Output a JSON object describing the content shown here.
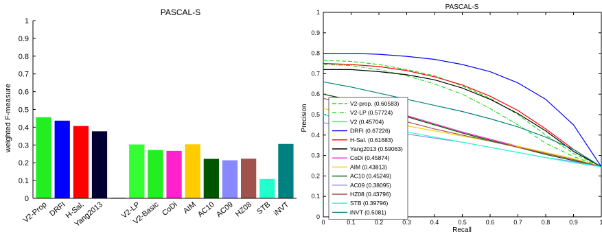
{
  "chart_data": [
    {
      "type": "bar",
      "title": "PASCAL-S",
      "ylabel": "weighted F-measure",
      "xlabel": "",
      "ylim": [
        0,
        1
      ],
      "yticks": [
        "0",
        "0.1",
        "0.2",
        "0.3",
        "0.4",
        "0.5",
        "0.6",
        "0.7",
        "0.8",
        "0.9",
        "1"
      ],
      "grid": false,
      "bars": [
        {
          "label": "V2-Prop",
          "value": 0.456,
          "color": "#22ee22"
        },
        {
          "label": "DRFI",
          "value": 0.437,
          "color": "#0000ff"
        },
        {
          "label": "H-Sal.",
          "value": 0.407,
          "color": "#ff0000"
        },
        {
          "label": "Yang2013",
          "value": 0.377,
          "color": "#000033"
        },
        {
          "label": "",
          "value": 0.003,
          "color": "#000000"
        },
        {
          "label": "V2-LP",
          "value": 0.303,
          "color": "#33ff33"
        },
        {
          "label": "V2-Basic",
          "value": 0.272,
          "color": "#22ee22"
        },
        {
          "label": "CoDi",
          "value": 0.267,
          "color": "#ff22cc"
        },
        {
          "label": "AIM",
          "value": 0.304,
          "color": "#ffcc00"
        },
        {
          "label": "AC10",
          "value": 0.222,
          "color": "#005500"
        },
        {
          "label": "AC09",
          "value": 0.214,
          "color": "#8888ff"
        },
        {
          "label": "HZ08",
          "value": 0.223,
          "color": "#a0524d"
        },
        {
          "label": "STB",
          "value": 0.109,
          "color": "#22ffcc"
        },
        {
          "label": "iNVT",
          "value": 0.306,
          "color": "#008080"
        }
      ]
    },
    {
      "type": "line",
      "title": "PASCAL-S",
      "xlabel": "Recall",
      "ylabel": "Precision",
      "xlim": [
        0,
        1
      ],
      "ylim": [
        0,
        1
      ],
      "xticks": [
        "0",
        "0.1",
        "0.2",
        "0.3",
        "0.4",
        "0.5",
        "0.6",
        "0.7",
        "0.8",
        "0.9",
        "1"
      ],
      "yticks": [
        "0",
        "0.1",
        "0.2",
        "0.3",
        "0.4",
        "0.5",
        "0.6",
        "0.7",
        "0.8",
        "0.9",
        "1"
      ],
      "grid": false,
      "legend_position": "lower-left",
      "series": [
        {
          "name": "V2-prop. (0.60583)",
          "color": "#22dd22",
          "dash": "6,3",
          "x": [
            0,
            0.1,
            0.2,
            0.3,
            0.4,
            0.5,
            0.6,
            0.7,
            0.8,
            0.9,
            1
          ],
          "y": [
            0.765,
            0.76,
            0.745,
            0.72,
            0.69,
            0.64,
            0.58,
            0.5,
            0.4,
            0.31,
            0.245
          ]
        },
        {
          "name": "V2-LP (0.57724)",
          "color": "#22dd22",
          "dash": "6,2,1,2",
          "x": [
            0,
            0.1,
            0.2,
            0.3,
            0.4,
            0.5,
            0.6,
            0.7,
            0.8,
            0.9,
            1
          ],
          "y": [
            0.745,
            0.74,
            0.72,
            0.69,
            0.65,
            0.6,
            0.53,
            0.45,
            0.36,
            0.295,
            0.245
          ]
        },
        {
          "name": "V2 (0.45704)",
          "color": "#33ee33",
          "dash": "",
          "x": [
            0,
            0.1,
            0.2,
            0.3,
            0.4,
            0.5,
            0.6,
            0.7,
            0.8,
            0.9,
            1
          ],
          "y": [
            0.6,
            0.57,
            0.53,
            0.49,
            0.45,
            0.41,
            0.37,
            0.34,
            0.31,
            0.28,
            0.245
          ]
        },
        {
          "name": "DRFI (0.67226)",
          "color": "#0000ff",
          "dash": "",
          "x": [
            0,
            0.1,
            0.2,
            0.3,
            0.4,
            0.5,
            0.6,
            0.7,
            0.8,
            0.9,
            1
          ],
          "y": [
            0.8,
            0.8,
            0.795,
            0.785,
            0.77,
            0.745,
            0.71,
            0.655,
            0.575,
            0.45,
            0.245
          ]
        },
        {
          "name": "H-Sal. (0.61683)",
          "color": "#ff0000",
          "dash": "",
          "x": [
            0,
            0.1,
            0.2,
            0.3,
            0.4,
            0.5,
            0.6,
            0.7,
            0.8,
            0.9,
            1
          ],
          "y": [
            0.75,
            0.745,
            0.735,
            0.715,
            0.685,
            0.645,
            0.59,
            0.52,
            0.43,
            0.33,
            0.245
          ]
        },
        {
          "name": "Yang2013 (0.59063)",
          "color": "#000000",
          "dash": "",
          "x": [
            0,
            0.1,
            0.2,
            0.3,
            0.4,
            0.5,
            0.6,
            0.7,
            0.8,
            0.9,
            1
          ],
          "y": [
            0.72,
            0.72,
            0.71,
            0.695,
            0.67,
            0.63,
            0.575,
            0.505,
            0.42,
            0.32,
            0.245
          ]
        },
        {
          "name": "CoDi (0.45874)",
          "color": "#ff22cc",
          "dash": "",
          "x": [
            0,
            0.1,
            0.2,
            0.3,
            0.4,
            0.5,
            0.6,
            0.7,
            0.8,
            0.9,
            1
          ],
          "y": [
            0.6,
            0.57,
            0.535,
            0.495,
            0.455,
            0.415,
            0.38,
            0.345,
            0.31,
            0.28,
            0.245
          ]
        },
        {
          "name": "AIM (0.43813)",
          "color": "#ffcc00",
          "dash": "",
          "x": [
            0,
            0.1,
            0.2,
            0.3,
            0.4,
            0.5,
            0.6,
            0.7,
            0.8,
            0.9,
            1
          ],
          "y": [
            0.53,
            0.5,
            0.47,
            0.445,
            0.42,
            0.395,
            0.37,
            0.345,
            0.315,
            0.285,
            0.245
          ]
        },
        {
          "name": "AC10 (0.45249)",
          "color": "#005500",
          "dash": "",
          "x": [
            0,
            0.1,
            0.2,
            0.3,
            0.4,
            0.5,
            0.6,
            0.7,
            0.8,
            0.9,
            1
          ],
          "y": [
            0.6,
            0.57,
            0.53,
            0.49,
            0.45,
            0.41,
            0.375,
            0.34,
            0.305,
            0.275,
            0.245
          ]
        },
        {
          "name": "AC09 (0.38095)",
          "color": "#8888ff",
          "dash": "",
          "x": [
            0,
            0.1,
            0.2,
            0.3,
            0.4,
            0.5,
            0.6,
            0.7,
            0.8,
            0.9,
            1
          ],
          "y": [
            0.46,
            0.44,
            0.425,
            0.405,
            0.385,
            0.365,
            0.34,
            0.315,
            0.29,
            0.27,
            0.245
          ]
        },
        {
          "name": "HZ08 (0.43796)",
          "color": "#a0524d",
          "dash": "",
          "x": [
            0,
            0.1,
            0.2,
            0.3,
            0.4,
            0.5,
            0.6,
            0.7,
            0.8,
            0.9,
            1
          ],
          "y": [
            0.58,
            0.54,
            0.5,
            0.465,
            0.43,
            0.4,
            0.37,
            0.34,
            0.31,
            0.28,
            0.245
          ]
        },
        {
          "name": "STB (0.39796)",
          "color": "#22ffcc",
          "dash": "",
          "x": [
            0,
            0.1,
            0.2,
            0.3,
            0.4,
            0.5,
            0.6,
            0.7,
            0.8,
            0.9,
            1
          ],
          "y": [
            0.5,
            0.465,
            0.44,
            0.415,
            0.39,
            0.365,
            0.34,
            0.315,
            0.29,
            0.265,
            0.245
          ]
        },
        {
          "name": "iNVT (0.5081)",
          "color": "#008080",
          "dash": "",
          "x": [
            0,
            0.1,
            0.2,
            0.3,
            0.4,
            0.5,
            0.6,
            0.7,
            0.8,
            0.9,
            1
          ],
          "y": [
            0.66,
            0.635,
            0.605,
            0.575,
            0.545,
            0.515,
            0.48,
            0.44,
            0.39,
            0.33,
            0.245
          ]
        }
      ]
    }
  ]
}
